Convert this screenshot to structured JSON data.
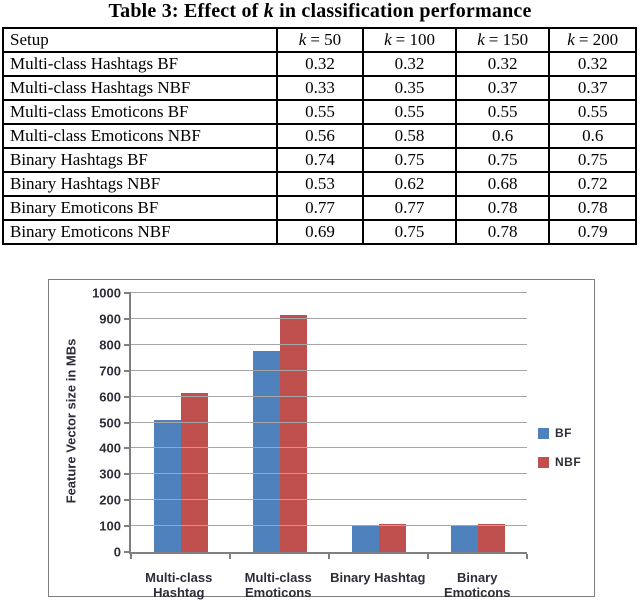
{
  "title": {
    "prefix": "Table 3: Effect of ",
    "var": "k",
    "suffix": " in classification performance"
  },
  "table": {
    "setup_header": "Setup",
    "col_headers": [
      {
        "var": "k",
        "eq": "= 50"
      },
      {
        "var": "k",
        "eq": "= 100"
      },
      {
        "var": "k",
        "eq": "= 150"
      },
      {
        "var": "k",
        "eq": "= 200"
      }
    ],
    "rows": [
      {
        "setup": "Multi-class Hashtags BF",
        "values": [
          "0.32",
          "0.32",
          "0.32",
          "0.32"
        ]
      },
      {
        "setup": "Multi-class Hashtags NBF",
        "values": [
          "0.33",
          "0.35",
          "0.37",
          "0.37"
        ]
      },
      {
        "setup": "Multi-class Emoticons BF",
        "values": [
          "0.55",
          "0.55",
          "0.55",
          "0.55"
        ]
      },
      {
        "setup": "Multi-class Emoticons NBF",
        "values": [
          "0.56",
          "0.58",
          "0.6",
          "0.6"
        ]
      },
      {
        "setup": "Binary Hashtags BF",
        "values": [
          "0.74",
          "0.75",
          "0.75",
          "0.75"
        ]
      },
      {
        "setup": "Binary Hashtags NBF",
        "values": [
          "0.53",
          "0.62",
          "0.68",
          "0.72"
        ]
      },
      {
        "setup": "Binary Emoticons BF",
        "values": [
          "0.77",
          "0.77",
          "0.78",
          "0.78"
        ]
      },
      {
        "setup": "Binary Emoticons NBF",
        "values": [
          "0.69",
          "0.75",
          "0.78",
          "0.79"
        ]
      }
    ]
  },
  "chart_data": {
    "type": "bar",
    "categories": [
      "Multi-class\nHashtag",
      "Multi-class\nEmoticons",
      "Binary Hashtag",
      "Binary\nEmoticons"
    ],
    "series": [
      {
        "name": "BF",
        "color": "#4F81BD",
        "values": [
          510,
          775,
          100,
          100
        ]
      },
      {
        "name": "NBF",
        "color": "#C0504D",
        "values": [
          615,
          915,
          110,
          110
        ]
      }
    ],
    "title": "",
    "xlabel": "",
    "ylabel": "Feature Vector size in MBs",
    "ylim": [
      0,
      1000
    ],
    "yticks": [
      0,
      100,
      200,
      300,
      400,
      500,
      600,
      700,
      800,
      900,
      1000
    ],
    "grid": true,
    "legend_position": "right"
  }
}
